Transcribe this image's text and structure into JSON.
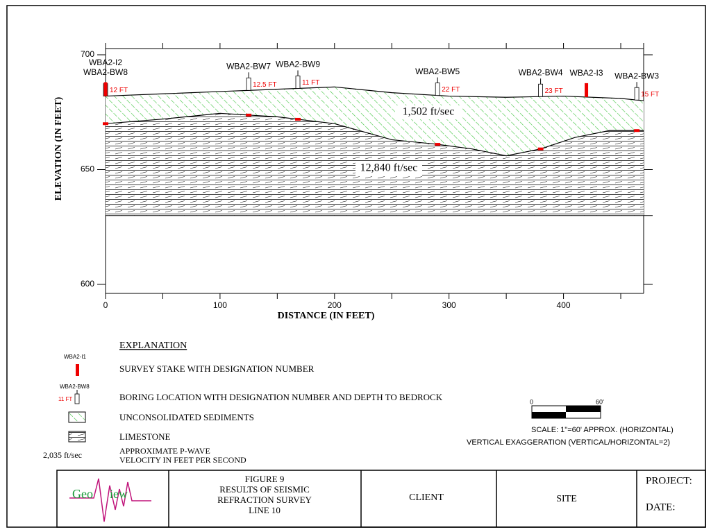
{
  "chart_data": {
    "type": "cross-section",
    "x_label": "DISTANCE (IN FEET)",
    "y_label": "ELEVATION (IN FEET)",
    "xlim": [
      0,
      470
    ],
    "ylim": [
      600,
      700
    ],
    "xticks": [
      0,
      100,
      200,
      300,
      400
    ],
    "x_minor_ticks": [
      50,
      150,
      250,
      350,
      450
    ],
    "yticks": [
      600,
      650,
      700
    ],
    "ground_surface": {
      "x": [
        0,
        50,
        100,
        150,
        200,
        250,
        300,
        350,
        400,
        450,
        470
      ],
      "values": [
        682,
        683,
        684,
        685,
        686,
        683.5,
        682,
        681.5,
        682,
        681,
        680
      ]
    },
    "bedrock_surface": {
      "x": [
        0,
        50,
        100,
        150,
        200,
        250,
        290,
        320,
        350,
        380,
        410,
        440,
        470
      ],
      "values": [
        670,
        672,
        674.5,
        673,
        670,
        663,
        661,
        659,
        656,
        659,
        664,
        667,
        667
      ]
    },
    "limestone_base": 630,
    "velocity_labels": [
      "1,502 ft/sec",
      "12,840 ft/sec"
    ],
    "borings": [
      {
        "name": "WBA2-BW8",
        "x": 0,
        "depth_label": "12 FT"
      },
      {
        "name": "WBA2-BW7",
        "x": 125,
        "depth_label": "12.5 FT"
      },
      {
        "name": "WBA2-BW9",
        "x": 168,
        "depth_label": "11 FT"
      },
      {
        "name": "WBA2-BW5",
        "x": 290,
        "depth_label": "22 FT"
      },
      {
        "name": "WBA2-BW4",
        "x": 380,
        "depth_label": "23 FT"
      },
      {
        "name": "WBA2-BW3",
        "x": 464,
        "depth_label": "15 FT"
      }
    ],
    "stakes": [
      {
        "name": "WBA2-I2",
        "x": 0
      },
      {
        "name": "WBA2-I3",
        "x": 420
      }
    ]
  },
  "explanation": {
    "title": "EXPLANATION",
    "stake_example": "WBA2-I1",
    "stake_text": "SURVEY STAKE WITH DESIGNATION NUMBER",
    "boring_example": "WBA2-BW8",
    "boring_depth": "11 FT",
    "boring_text": "BORING LOCATION WITH DESIGNATION NUMBER AND DEPTH TO BEDROCK",
    "sediments": "UNCONSOLIDATED SEDIMENTS",
    "limestone": "LIMESTONE",
    "velocity_example": "2,035 ft/sec",
    "velocity_text": [
      "APPROXIMATE P-WAVE",
      "VELOCITY IN FEET PER SECOND"
    ]
  },
  "scale": {
    "start": "0",
    "end": "60'",
    "text": "SCALE: 1\"=60' APPROX. (HORIZONTAL)",
    "exaggeration": "VERTICAL EXAGGERATION (VERTICAL/HORIZONTAL=2)"
  },
  "title_block": {
    "logo": [
      "Geo",
      "iew"
    ],
    "figure": [
      "FIGURE 9",
      "RESULTS OF SEISMIC",
      "REFRACTION SURVEY",
      "LINE 10"
    ],
    "client": "CLIENT",
    "site": "SITE",
    "project": "PROJECT:",
    "date": "DATE:"
  }
}
